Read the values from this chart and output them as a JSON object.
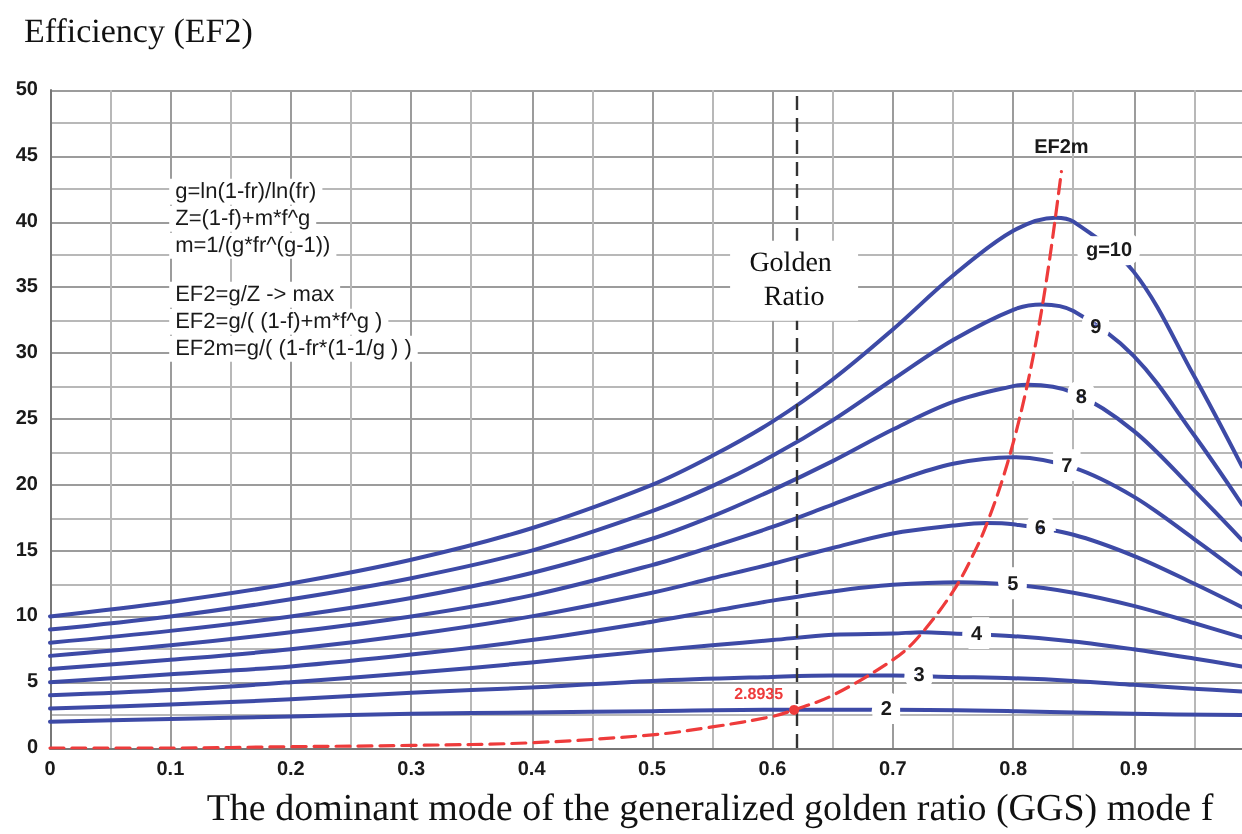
{
  "chart_data": {
    "type": "line",
    "ylabel": "Efficiency (EF2)",
    "xlabel": "The dominant mode of the generalized golden ratio (GGS) mode f",
    "xlim": [
      0,
      0.99
    ],
    "xticks": [
      0,
      0.1,
      0.2,
      0.3,
      0.4,
      0.5,
      0.6,
      0.7,
      0.8,
      0.9
    ],
    "ylim": [
      0,
      50
    ],
    "yticks": [
      0,
      5,
      10,
      15,
      20,
      25,
      30,
      35,
      40,
      45,
      50
    ],
    "grid": true,
    "marker": "none",
    "line_style": "solid",
    "series": [
      {
        "name": "2",
        "color": "#3d4aa6",
        "x": [
          0,
          0.1,
          0.2,
          0.3,
          0.4,
          0.5,
          0.6,
          0.7,
          0.8,
          0.9,
          0.99
        ],
        "values": [
          2.0,
          2.2,
          2.4,
          2.6,
          2.7,
          2.8,
          2.9,
          2.9,
          2.8,
          2.6,
          2.5
        ]
      },
      {
        "name": "3",
        "color": "#3d4aa6",
        "x": [
          0,
          0.1,
          0.2,
          0.3,
          0.4,
          0.5,
          0.6,
          0.65,
          0.682,
          0.7,
          0.75,
          0.8,
          0.85,
          0.9,
          0.95,
          0.99
        ],
        "values": [
          3.0,
          3.3,
          3.7,
          4.2,
          4.6,
          5.1,
          5.4,
          5.5,
          5.5,
          5.5,
          5.4,
          5.3,
          5.1,
          4.8,
          4.5,
          4.3
        ]
      },
      {
        "name": "4",
        "color": "#3d4aa6",
        "x": [
          0,
          0.1,
          0.2,
          0.3,
          0.4,
          0.5,
          0.55,
          0.6,
          0.65,
          0.7,
          0.725,
          0.75,
          0.8,
          0.85,
          0.9,
          0.95,
          0.99
        ],
        "values": [
          4.0,
          4.4,
          5.0,
          5.7,
          6.5,
          7.4,
          7.8,
          8.2,
          8.6,
          8.7,
          8.8,
          8.7,
          8.5,
          8.1,
          7.5,
          6.8,
          6.2
        ]
      },
      {
        "name": "5",
        "color": "#3d4aa6",
        "x": [
          0,
          0.1,
          0.2,
          0.3,
          0.4,
          0.5,
          0.55,
          0.6,
          0.65,
          0.7,
          0.755,
          0.8,
          0.85,
          0.9,
          0.95,
          0.99
        ],
        "values": [
          5.0,
          5.6,
          6.2,
          7.1,
          8.2,
          9.6,
          10.4,
          11.2,
          11.9,
          12.4,
          12.6,
          12.4,
          11.8,
          10.8,
          9.5,
          8.4
        ]
      },
      {
        "name": "6",
        "color": "#3d4aa6",
        "x": [
          0,
          0.1,
          0.2,
          0.3,
          0.4,
          0.5,
          0.55,
          0.6,
          0.65,
          0.7,
          0.75,
          0.778,
          0.8,
          0.85,
          0.9,
          0.95,
          0.99
        ],
        "values": [
          6.0,
          6.7,
          7.5,
          8.6,
          10.0,
          11.8,
          12.9,
          14.0,
          15.2,
          16.3,
          16.9,
          17.1,
          17.0,
          16.2,
          14.6,
          12.5,
          10.7
        ]
      },
      {
        "name": "7",
        "color": "#3d4aa6",
        "x": [
          0,
          0.1,
          0.2,
          0.3,
          0.4,
          0.5,
          0.55,
          0.6,
          0.65,
          0.7,
          0.75,
          0.8,
          0.85,
          0.9,
          0.95,
          0.99
        ],
        "values": [
          7.0,
          7.8,
          8.8,
          10.0,
          11.6,
          13.9,
          15.3,
          16.8,
          18.5,
          20.2,
          21.6,
          22.1,
          21.3,
          19.1,
          15.9,
          13.2
        ]
      },
      {
        "name": "8",
        "color": "#3d4aa6",
        "x": [
          0,
          0.1,
          0.2,
          0.3,
          0.4,
          0.5,
          0.55,
          0.6,
          0.65,
          0.7,
          0.75,
          0.8,
          0.812,
          0.85,
          0.9,
          0.95,
          0.99
        ],
        "values": [
          8.0,
          8.9,
          10.0,
          11.4,
          13.3,
          15.9,
          17.6,
          19.6,
          21.8,
          24.2,
          26.3,
          27.5,
          27.6,
          27.0,
          24.1,
          19.6,
          15.8
        ]
      },
      {
        "name": "9",
        "color": "#3d4aa6",
        "x": [
          0,
          0.1,
          0.2,
          0.3,
          0.4,
          0.5,
          0.55,
          0.6,
          0.65,
          0.7,
          0.75,
          0.8,
          0.824,
          0.85,
          0.9,
          0.95,
          0.99
        ],
        "values": [
          9.0,
          10.0,
          11.3,
          12.9,
          15.0,
          18.0,
          19.9,
          22.2,
          24.9,
          28.0,
          31.0,
          33.3,
          33.7,
          33.2,
          29.8,
          23.8,
          18.5
        ]
      },
      {
        "name": "g=10",
        "color": "#3d4aa6",
        "x": [
          0,
          0.1,
          0.2,
          0.3,
          0.4,
          0.5,
          0.55,
          0.6,
          0.65,
          0.7,
          0.75,
          0.8,
          0.835,
          0.85,
          0.9,
          0.95,
          0.99
        ],
        "values": [
          10.0,
          11.1,
          12.5,
          14.3,
          16.7,
          20.0,
          22.2,
          24.8,
          28.0,
          31.8,
          35.9,
          39.3,
          40.3,
          40.0,
          36.2,
          28.3,
          21.4
        ]
      },
      {
        "name": "EF2m",
        "color": "#ee3b3b",
        "line_style": "dashed",
        "x": [
          0,
          0.1,
          0.2,
          0.3,
          0.4,
          0.5,
          0.55,
          0.6,
          0.618,
          0.65,
          0.7,
          0.72,
          0.75,
          0.77,
          0.78,
          0.79,
          0.8,
          0.81,
          0.82,
          0.83,
          0.84
        ],
        "values": [
          0.0,
          0.0,
          0.1,
          0.2,
          0.4,
          1.0,
          1.6,
          2.4,
          2.9,
          4.0,
          6.7,
          8.3,
          11.9,
          15.3,
          17.5,
          20.1,
          23.2,
          26.9,
          31.4,
          37.0,
          43.8
        ]
      }
    ],
    "ref_lines": [
      {
        "axis": "x",
        "value": 0.618,
        "label": "Golden Ratio",
        "color": "#333333",
        "line_style": "dashed"
      }
    ],
    "annotations": [
      "g=ln(1-fr)/ln(fr)",
      "Z=(1-f)+m*f^g",
      "m=1/(g*fr^(g-1))",
      "EF2=g/Z -> max",
      "EF2=g/( (1-f)+m*f^g )",
      "EF2m=g/( (1-fr*(1-1/g ) )",
      {
        "text": "2.8935",
        "x": 0.618,
        "y": 2.8935
      }
    ]
  }
}
